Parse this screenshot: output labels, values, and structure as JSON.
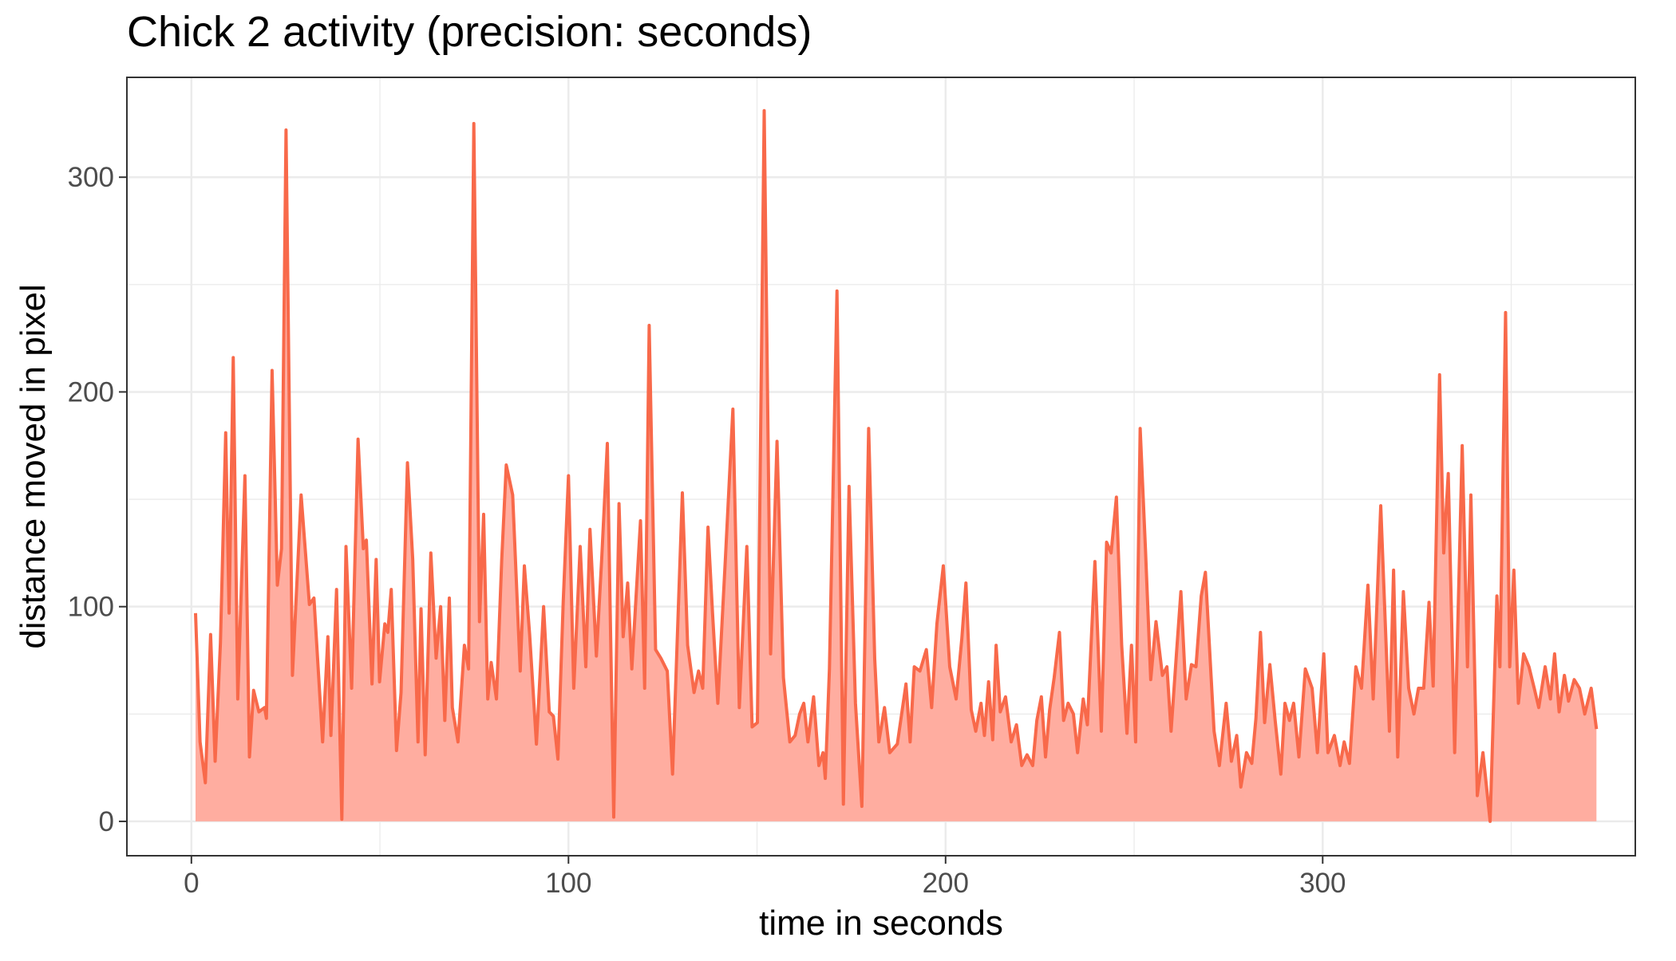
{
  "chart_data": {
    "type": "area-line",
    "title": "Chick 2 activity (precision: seconds)",
    "x_label": "time in seconds",
    "y_label": "distance moved in pixel",
    "color": "#f8694a",
    "fill_color": "#ffada0",
    "xlim": [
      -17.1,
      382.9
    ],
    "ylim": [
      -16,
      346.5
    ],
    "xticks": [
      0,
      100,
      200,
      300
    ],
    "yticks": [
      0,
      100,
      200,
      300
    ],
    "x_minor_grid": [
      50,
      150,
      250,
      350
    ],
    "y_minor_grid": [
      50,
      150,
      250
    ],
    "grid": true,
    "x": [
      1.1,
      2.3,
      3.7,
      5.1,
      6.3,
      7.7,
      9.1,
      10,
      11.1,
      12.3,
      14.2,
      15.4,
      16.5,
      17.9,
      19.4,
      19.9,
      21.4,
      22.8,
      23.9,
      25.1,
      26.8,
      29.1,
      31.3,
      32.5,
      34.8,
      36.2,
      37,
      38.5,
      39.9,
      41,
      42.5,
      44.2,
      45.6,
      46.4,
      47.9,
      49,
      49.9,
      51.3,
      52.1,
      53,
      54.4,
      55.6,
      57.3,
      58.7,
      60.1,
      60.9,
      62,
      63.5,
      64.9,
      66.1,
      67.2,
      68.4,
      69.2,
      70.7,
      72.4,
      73.5,
      74.9,
      76.4,
      77.5,
      78.6,
      79.5,
      80.9,
      82.3,
      83.5,
      85.2,
      87.2,
      88.3,
      89.7,
      91.5,
      93.4,
      94.9,
      96,
      97.2,
      98.6,
      100,
      101.4,
      103.1,
      104.6,
      105.7,
      107.4,
      108.8,
      110.3,
      112,
      113.4,
      114.5,
      115.7,
      116.8,
      119.1,
      120.2,
      121.4,
      123.1,
      124.5,
      126.2,
      127.6,
      130.2,
      131.6,
      133.3,
      134.5,
      135.6,
      137,
      138.2,
      139.6,
      141.6,
      143.6,
      145.3,
      147.3,
      148.7,
      150.1,
      151.9,
      153.6,
      155.3,
      157,
      158.7,
      160.1,
      161.3,
      162.4,
      163.5,
      165,
      166.4,
      167.5,
      168.1,
      169.2,
      171.2,
      172.9,
      174.4,
      176.1,
      177.8,
      179.6,
      181.2,
      182.3,
      183.8,
      185.2,
      187.2,
      189.5,
      190.6,
      191.7,
      193.2,
      194.9,
      196.3,
      197.7,
      199.4,
      201.1,
      202.8,
      204.3,
      205.4,
      206.8,
      208,
      209.4,
      210.3,
      211.4,
      212.5,
      213.4,
      214.5,
      215.9,
      217.4,
      218.8,
      220.2,
      221.6,
      223.1,
      224.2,
      225.4,
      226.5,
      227.6,
      228.8,
      230.2,
      231.3,
      232.5,
      233.9,
      235,
      236.5,
      237.6,
      239.6,
      241.3,
      242.7,
      243.9,
      245.3,
      246.7,
      248.1,
      249.3,
      250.4,
      251.6,
      253,
      254.4,
      255.8,
      257.5,
      258.7,
      259.8,
      261.3,
      262.4,
      263.8,
      265.2,
      266.4,
      267.8,
      268.9,
      271.2,
      272.6,
      274.4,
      275.8,
      277.2,
      278.3,
      279.8,
      281.2,
      282.3,
      283.5,
      284.6,
      286,
      287.4,
      288.9,
      290,
      291.2,
      292.3,
      293.7,
      295.4,
      297.2,
      298.6,
      300.3,
      301.4,
      303.1,
      304.6,
      305.7,
      307.1,
      308.8,
      310.3,
      312,
      313.4,
      315.4,
      317.7,
      318.8,
      319.9,
      321.4,
      322.8,
      324.2,
      325.4,
      326.8,
      328.2,
      329.3,
      331,
      332.1,
      333.3,
      335,
      337,
      338.4,
      339.3,
      341,
      342.5,
      344.4,
      346.2,
      347,
      348.5,
      349.6,
      350.7,
      351.9,
      353.3,
      354.7,
      356.1,
      357.3,
      359,
      360.4,
      361.5,
      362.7,
      364.1,
      365.2,
      366.7,
      368.1,
      369.5,
      371.2,
      372.6
    ],
    "values": [
      97,
      37,
      18,
      87,
      28,
      83,
      181,
      97,
      216,
      57,
      161,
      30,
      61,
      51,
      53,
      48,
      210,
      110,
      127,
      322,
      68,
      152,
      101,
      104,
      37,
      86,
      40,
      108,
      1,
      128,
      62,
      178,
      127,
      131,
      64,
      122,
      65,
      92,
      88,
      108,
      33,
      60,
      167,
      122,
      37,
      99,
      31,
      125,
      76,
      100,
      47,
      104,
      53,
      37,
      82,
      71,
      325,
      93,
      143,
      57,
      74,
      57,
      122,
      166,
      152,
      70,
      119,
      87,
      36,
      100,
      51,
      49,
      29,
      102,
      161,
      62,
      128,
      72,
      136,
      77,
      122,
      176,
      2,
      148,
      86,
      111,
      71,
      140,
      62,
      231,
      80,
      76,
      70,
      22,
      153,
      82,
      60,
      70,
      62,
      137,
      97,
      55,
      122,
      192,
      53,
      128,
      44,
      46,
      331,
      78,
      177,
      67,
      37,
      40,
      50,
      55,
      37,
      58,
      26,
      32,
      20,
      71,
      247,
      8,
      156,
      55,
      7,
      183,
      76,
      37,
      53,
      32,
      36,
      64,
      37,
      72,
      70,
      80,
      53,
      92,
      119,
      72,
      57,
      85,
      111,
      52,
      42,
      55,
      40,
      65,
      38,
      82,
      51,
      58,
      37,
      45,
      26,
      31,
      26,
      47,
      58,
      30,
      52,
      67,
      88,
      47,
      55,
      50,
      32,
      57,
      45,
      121,
      42,
      130,
      125,
      151,
      82,
      41,
      82,
      37,
      183,
      127,
      66,
      93,
      68,
      72,
      42,
      80,
      107,
      57,
      73,
      72,
      105,
      116,
      42,
      26,
      55,
      28,
      40,
      16,
      32,
      27,
      48,
      88,
      46,
      73,
      47,
      22,
      55,
      47,
      55,
      30,
      71,
      62,
      32,
      78,
      32,
      40,
      26,
      37,
      27,
      72,
      62,
      110,
      57,
      147,
      42,
      117,
      30,
      107,
      62,
      50,
      62,
      62,
      102,
      63,
      208,
      125,
      162,
      32,
      175,
      72,
      152,
      12,
      32,
      0,
      105,
      72,
      237,
      72,
      117,
      55,
      78,
      72,
      62,
      53,
      72,
      57,
      78,
      51,
      68,
      56,
      66,
      62,
      50,
      62,
      43
    ]
  }
}
